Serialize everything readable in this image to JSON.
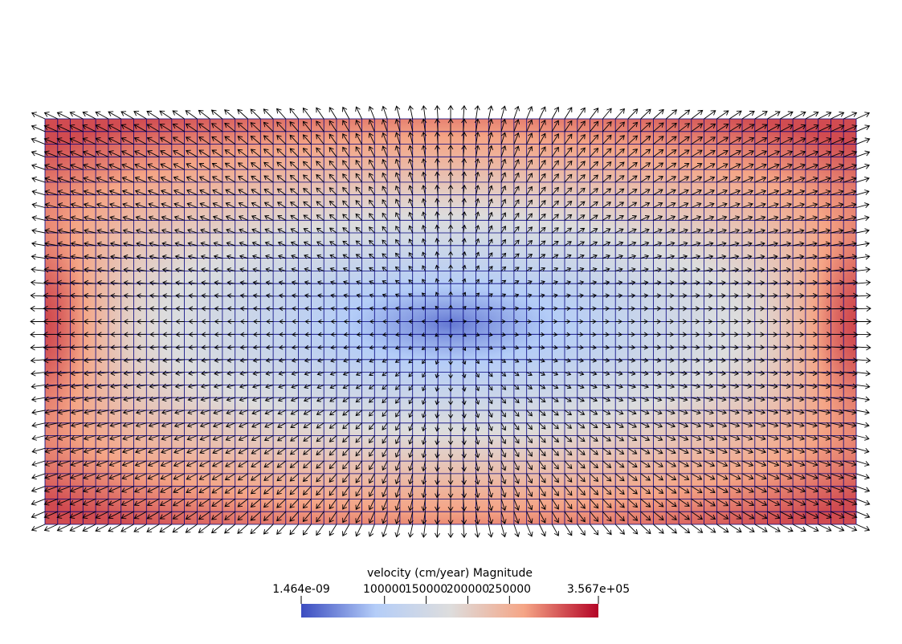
{
  "chart_data": {
    "type": "heatmap",
    "title": "",
    "field": "velocity",
    "colorbar": {
      "title": "velocity (cm/year) Magnitude",
      "min_label": "1.464e-09",
      "max_label": "3.567e+05",
      "min": 1.464e-09,
      "max": 356700,
      "ticks": [
        100000,
        150000,
        200000,
        250000
      ],
      "tick_labels": [
        "100000",
        "150000",
        "200000",
        "250000"
      ],
      "colormap": [
        "#3b4cc0",
        "#b4cdf8",
        "#dddddd",
        "#f5a586",
        "#b40426"
      ]
    },
    "mesh": {
      "cells_x": 64,
      "cells_y": 32,
      "line_color": "#00007f"
    },
    "glyph_color": "#000000",
    "field_peak_magnitude": 356700,
    "field_min_magnitude": 1.464e-09
  }
}
